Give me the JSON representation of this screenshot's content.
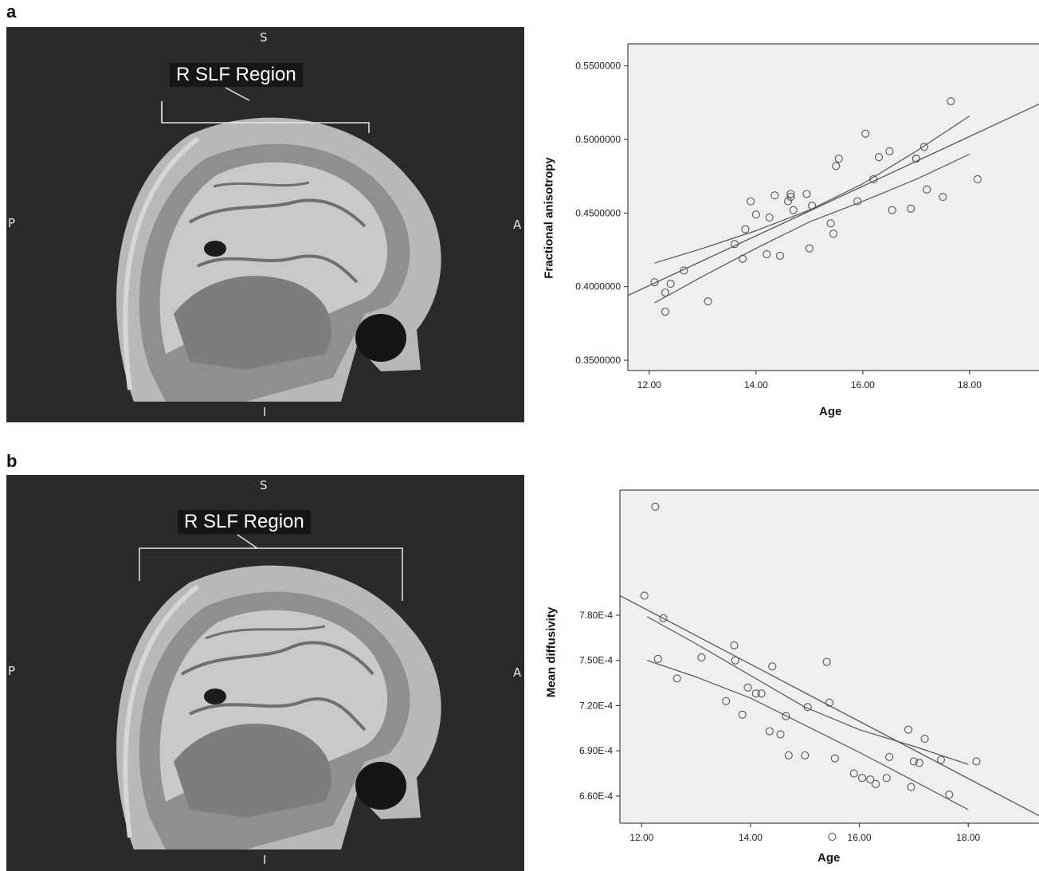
{
  "panels": [
    {
      "letter": "a",
      "image": {
        "region_label": "R SLF Region",
        "top": "S",
        "bottom": "I",
        "left": "P",
        "right": "A"
      }
    },
    {
      "letter": "b",
      "image": {
        "region_label": "R SLF Region",
        "top": "S",
        "bottom": "I",
        "left": "P",
        "right": "A"
      }
    }
  ],
  "colors": {
    "brain_bg": "#2a2a2a",
    "plot_bg": "#efefef",
    "marker": "#555555",
    "line": "#555555"
  },
  "chart_data": [
    {
      "type": "scatter",
      "xlabel": "Age",
      "ylabel": "Fractional anisotropy",
      "xlim": [
        11.6,
        19.3
      ],
      "ylim": [
        0.343,
        0.565
      ],
      "xticks": [
        "12.00",
        "14.00",
        "16.00",
        "18.00"
      ],
      "xtick_values": [
        12,
        14,
        16,
        18
      ],
      "yticks": [
        "0.3500000",
        "0.4000000",
        "0.4500000",
        "0.5000000",
        "0.5500000"
      ],
      "ytick_values": [
        0.35,
        0.4,
        0.45,
        0.5,
        0.55
      ],
      "points": [
        [
          12.1,
          0.403
        ],
        [
          12.3,
          0.396
        ],
        [
          12.3,
          0.383
        ],
        [
          12.4,
          0.402
        ],
        [
          12.65,
          0.411
        ],
        [
          13.1,
          0.39
        ],
        [
          13.6,
          0.429
        ],
        [
          13.75,
          0.419
        ],
        [
          13.8,
          0.439
        ],
        [
          13.9,
          0.458
        ],
        [
          14.0,
          0.449
        ],
        [
          14.2,
          0.422
        ],
        [
          14.25,
          0.447
        ],
        [
          14.35,
          0.462
        ],
        [
          14.45,
          0.421
        ],
        [
          14.6,
          0.458
        ],
        [
          14.65,
          0.463
        ],
        [
          14.65,
          0.461
        ],
        [
          14.7,
          0.452
        ],
        [
          14.95,
          0.463
        ],
        [
          15.0,
          0.426
        ],
        [
          15.05,
          0.455
        ],
        [
          15.4,
          0.443
        ],
        [
          15.45,
          0.436
        ],
        [
          15.5,
          0.482
        ],
        [
          15.55,
          0.487
        ],
        [
          15.9,
          0.458
        ],
        [
          16.05,
          0.504
        ],
        [
          16.2,
          0.473
        ],
        [
          16.3,
          0.488
        ],
        [
          16.5,
          0.492
        ],
        [
          16.55,
          0.452
        ],
        [
          16.9,
          0.453
        ],
        [
          17.0,
          0.487
        ],
        [
          17.0,
          0.487
        ],
        [
          17.15,
          0.495
        ],
        [
          17.2,
          0.466
        ],
        [
          17.5,
          0.461
        ],
        [
          17.65,
          0.526
        ],
        [
          18.15,
          0.473
        ]
      ],
      "fit": {
        "x0": 11.6,
        "y0": 0.394,
        "x1": 19.3,
        "y1": 0.524
      },
      "ci_upper": [
        [
          12.1,
          0.416
        ],
        [
          13.0,
          0.426
        ],
        [
          14.0,
          0.438
        ],
        [
          15.0,
          0.452
        ],
        [
          16.0,
          0.47
        ],
        [
          17.0,
          0.492
        ],
        [
          18.0,
          0.516
        ]
      ],
      "ci_lower": [
        [
          12.1,
          0.389
        ],
        [
          13.0,
          0.407
        ],
        [
          14.0,
          0.426
        ],
        [
          15.0,
          0.444
        ],
        [
          16.0,
          0.458
        ],
        [
          17.0,
          0.473
        ],
        [
          18.0,
          0.49
        ]
      ]
    },
    {
      "type": "scatter",
      "xlabel": "Age",
      "ylabel": "Mean diffusivity",
      "xlim": [
        11.6,
        19.3
      ],
      "ylim": [
        0.000642,
        0.000863
      ],
      "xticks": [
        "12.00",
        "14.00",
        "16.00",
        "18.00"
      ],
      "xtick_values": [
        12,
        14,
        16,
        18
      ],
      "yticks": [
        "6.60E-4",
        "6.90E-4",
        "7.20E-4",
        "7.50E-4",
        "7.80E-4"
      ],
      "ytick_values": [
        0.00066,
        0.00069,
        0.00072,
        0.00075,
        0.00078
      ],
      "points": [
        [
          12.05,
          0.000793
        ],
        [
          12.25,
          0.000852
        ],
        [
          12.3,
          0.000751
        ],
        [
          12.4,
          0.000778
        ],
        [
          12.65,
          0.000738
        ],
        [
          13.1,
          0.000752
        ],
        [
          13.55,
          0.000723
        ],
        [
          13.7,
          0.00076
        ],
        [
          13.72,
          0.00075
        ],
        [
          13.85,
          0.000714
        ],
        [
          13.95,
          0.000732
        ],
        [
          14.1,
          0.000728
        ],
        [
          14.2,
          0.000728
        ],
        [
          14.35,
          0.000703
        ],
        [
          14.4,
          0.000746
        ],
        [
          14.55,
          0.000701
        ],
        [
          14.65,
          0.000713
        ],
        [
          14.7,
          0.000687
        ],
        [
          15.0,
          0.000687
        ],
        [
          15.05,
          0.000719
        ],
        [
          15.4,
          0.000749
        ],
        [
          15.45,
          0.000722
        ],
        [
          15.5,
          0.000633
        ],
        [
          15.55,
          0.000685
        ],
        [
          15.9,
          0.000675
        ],
        [
          16.05,
          0.000672
        ],
        [
          16.2,
          0.000671
        ],
        [
          16.3,
          0.000668
        ],
        [
          16.5,
          0.000672
        ],
        [
          16.55,
          0.000686
        ],
        [
          16.9,
          0.000704
        ],
        [
          16.95,
          0.000666
        ],
        [
          17.0,
          0.000683
        ],
        [
          17.1,
          0.000682
        ],
        [
          17.2,
          0.000698
        ],
        [
          17.5,
          0.000684
        ],
        [
          17.65,
          0.000661
        ],
        [
          18.15,
          0.000683
        ]
      ],
      "fit": {
        "x0": 11.6,
        "y0": 0.000793,
        "x1": 19.3,
        "y1": 0.000647
      },
      "ci_upper": [
        [
          12.1,
          0.000779
        ],
        [
          13.0,
          0.000761
        ],
        [
          14.0,
          0.00074
        ],
        [
          15.0,
          0.000719
        ],
        [
          16.0,
          0.000704
        ],
        [
          17.0,
          0.000693
        ],
        [
          18.0,
          0.000681
        ]
      ],
      "ci_lower": [
        [
          12.1,
          0.00075
        ],
        [
          13.0,
          0.000739
        ],
        [
          14.0,
          0.000725
        ],
        [
          15.0,
          0.000707
        ],
        [
          16.0,
          0.000689
        ],
        [
          17.0,
          0.00067
        ],
        [
          18.0,
          0.000651
        ]
      ]
    }
  ]
}
